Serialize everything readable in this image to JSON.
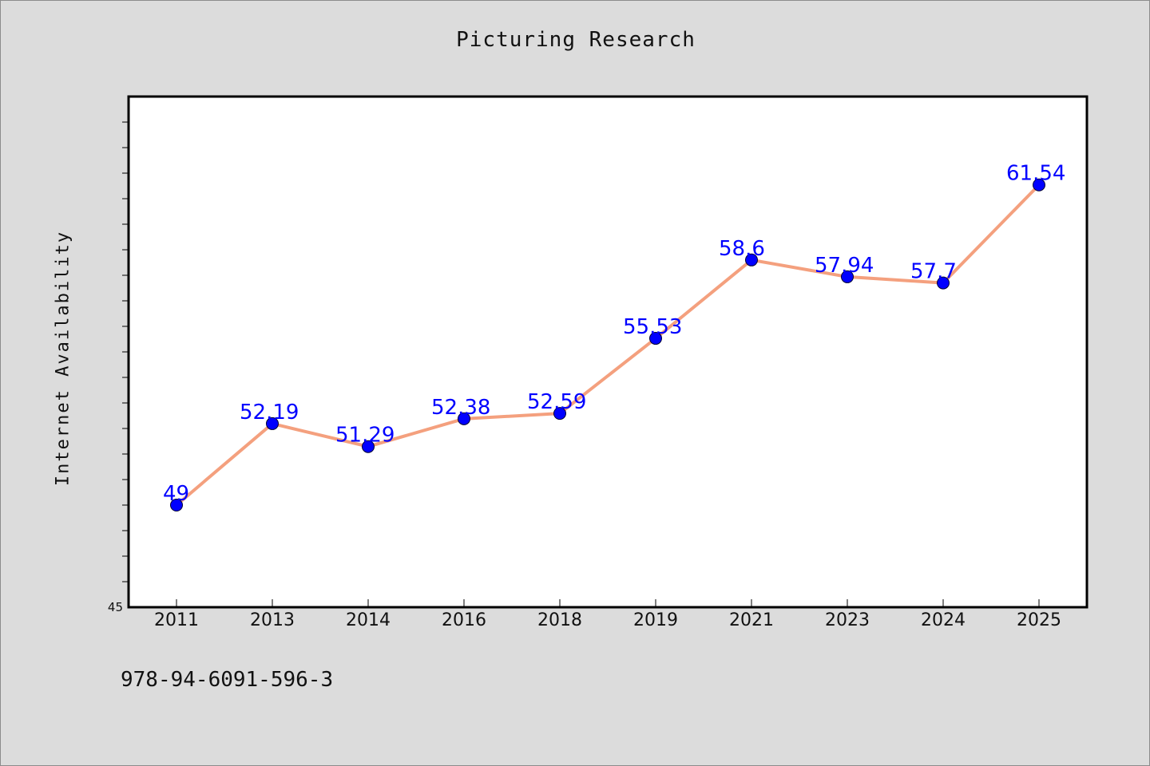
{
  "chart_data": {
    "type": "line",
    "title": "Picturing Research",
    "xlabel": "",
    "ylabel": "Internet Availability",
    "categories": [
      "2011",
      "2013",
      "2014",
      "2016",
      "2018",
      "2019",
      "2021",
      "2023",
      "2024",
      "2025"
    ],
    "series": [
      {
        "values": [
          49,
          52.19,
          51.29,
          52.38,
          52.59,
          55.53,
          58.6,
          57.94,
          57.7,
          61.54
        ],
        "data_labels": [
          "49",
          "52.19",
          "51.29",
          "52.38",
          "52.59",
          "55.53",
          "58.6",
          "57.94",
          "57.7",
          "61.54"
        ]
      }
    ],
    "ylim": [
      45,
      65
    ],
    "ytick_labels": [
      "45"
    ],
    "grid": false,
    "legend": "none",
    "colors": {
      "line": "#f4a07e",
      "marker": "#0000ff",
      "label": "#0000ff",
      "plot_background": "#ffffff",
      "page_background": "#dcdcdc"
    }
  },
  "footer_text": "978-94-6091-596-3"
}
